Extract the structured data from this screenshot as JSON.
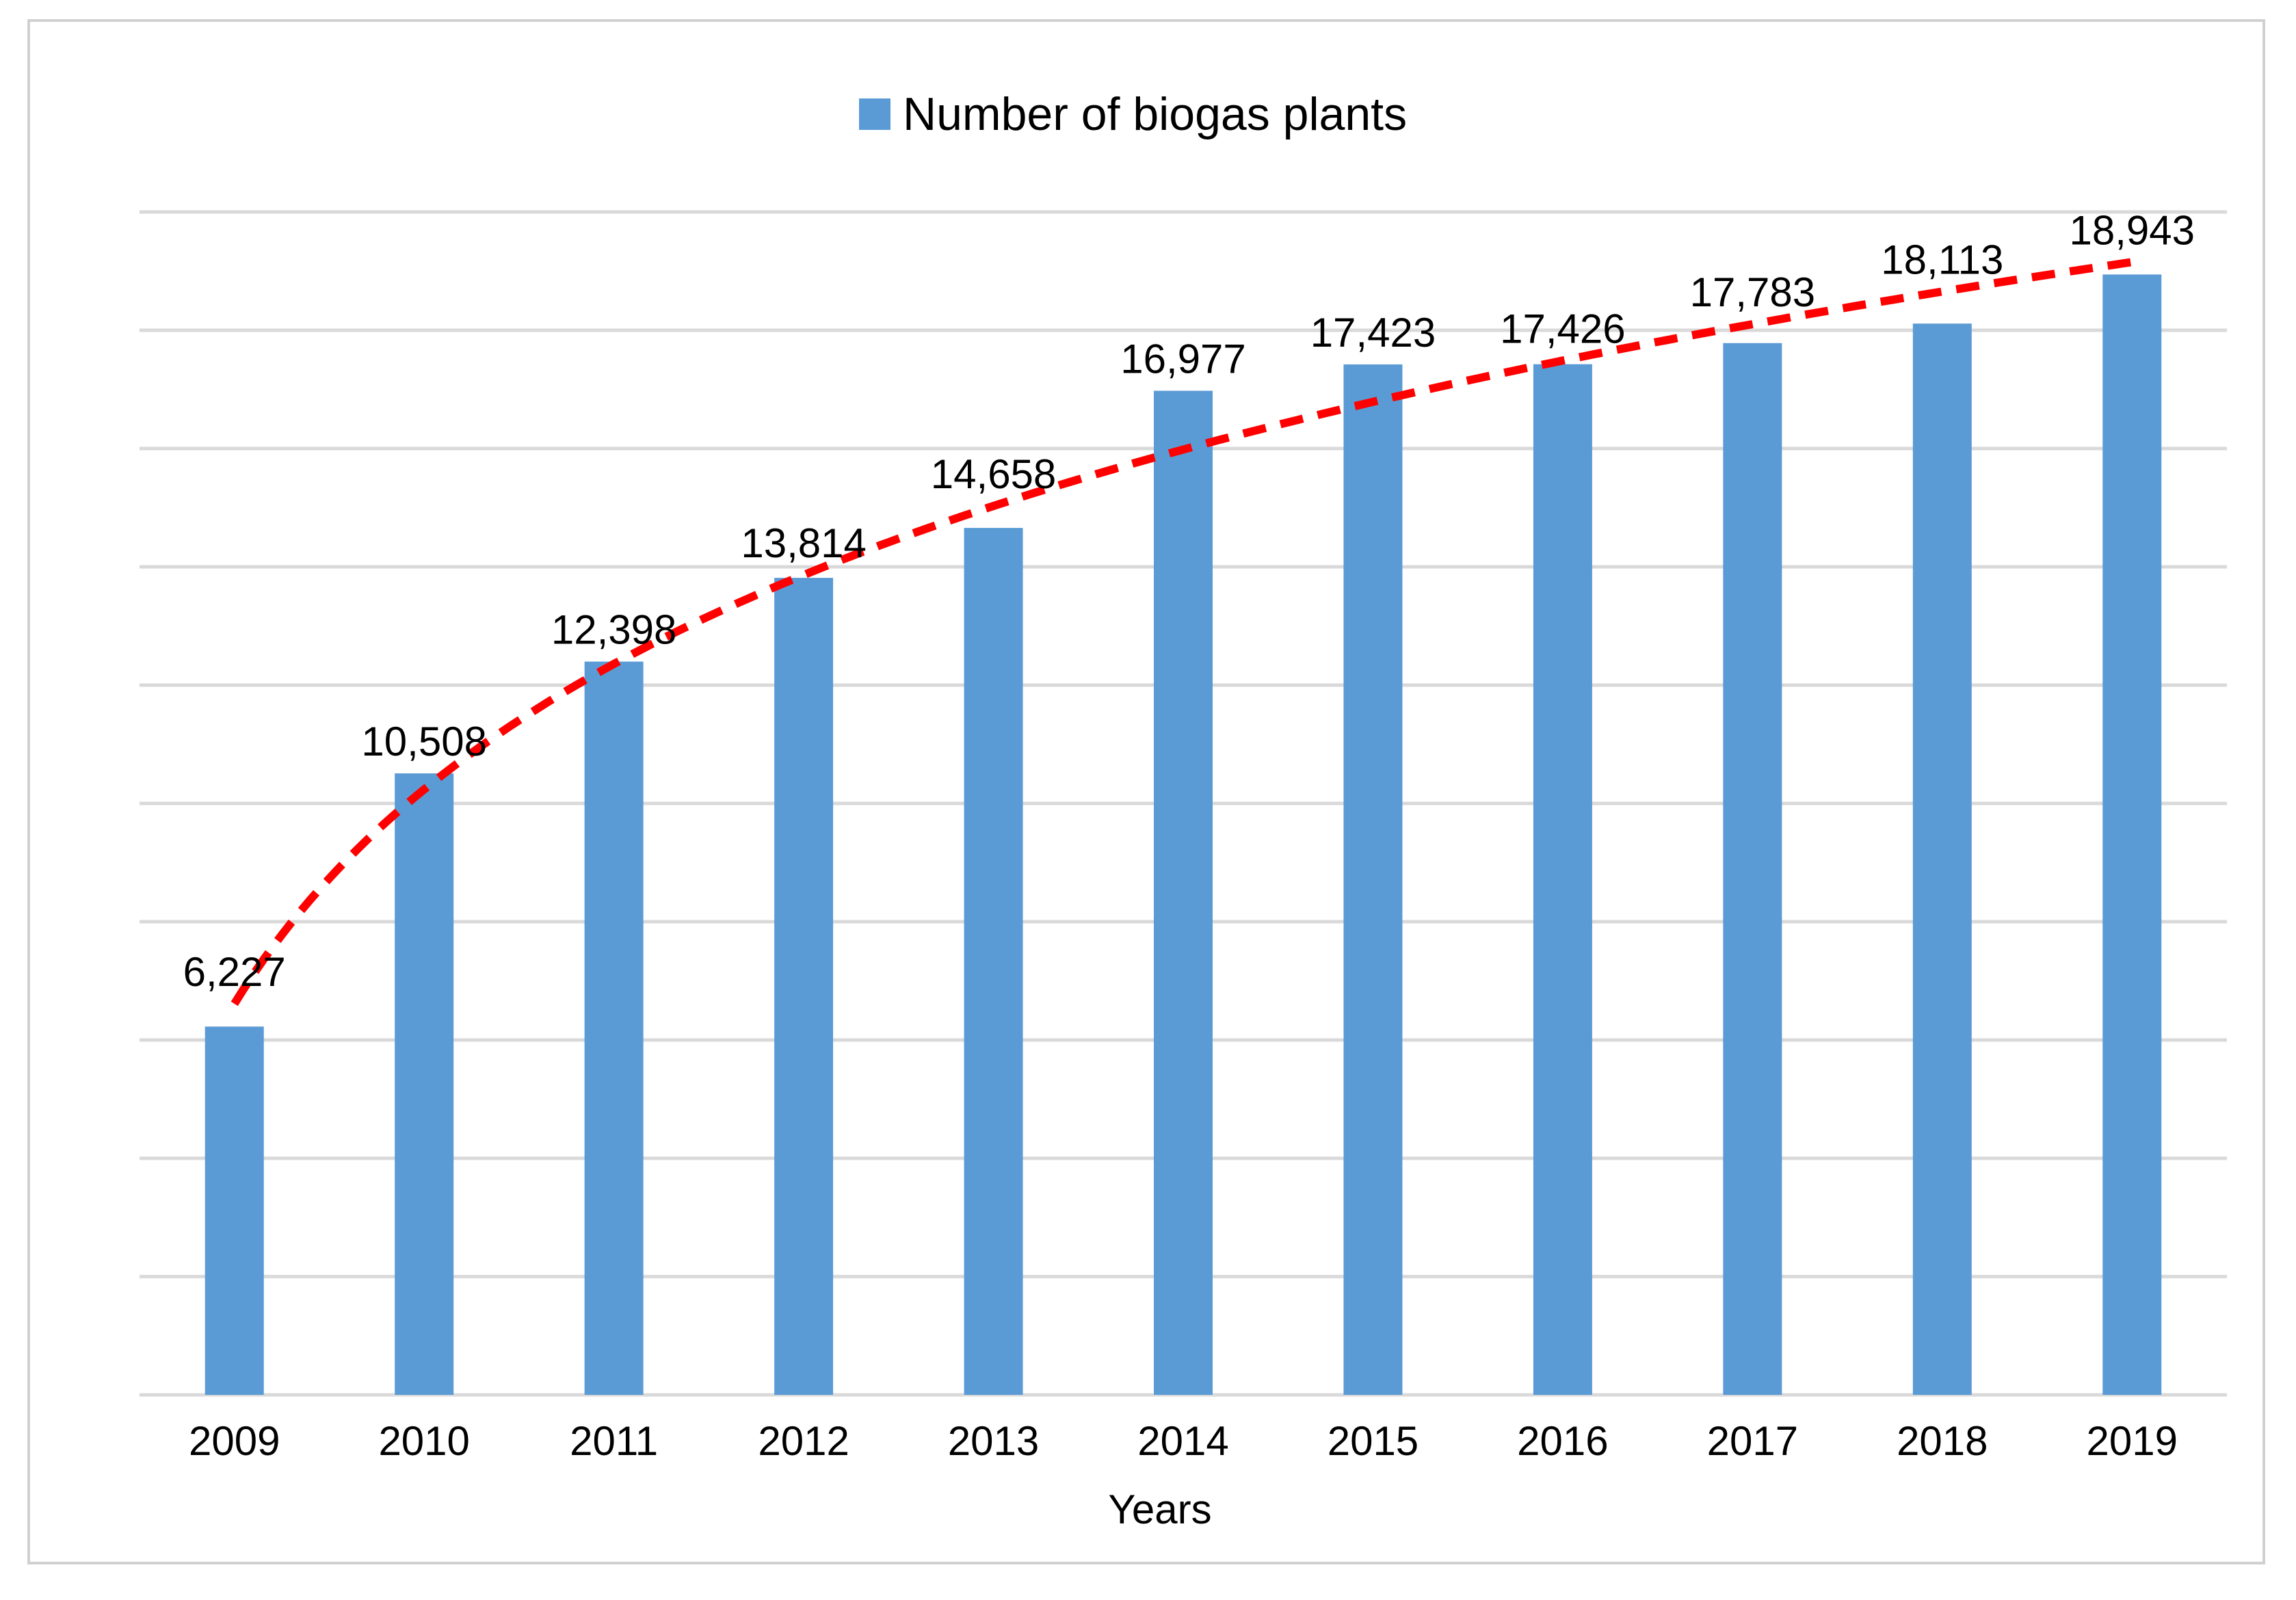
{
  "chart_data": {
    "type": "bar",
    "title": "",
    "xlabel": "Years",
    "ylabel": "",
    "legend": {
      "entries": [
        "Number of biogas plants"
      ],
      "position": "top"
    },
    "categories": [
      "2009",
      "2010",
      "2011",
      "2012",
      "2013",
      "2014",
      "2015",
      "2016",
      "2017",
      "2018",
      "2019"
    ],
    "series": [
      {
        "name": "Number of biogas plants",
        "values": [
          6227,
          10508,
          12398,
          13814,
          14658,
          16977,
          17423,
          17426,
          17783,
          18113,
          18943
        ],
        "data_labels": [
          "6,227",
          "10,508",
          "12,398",
          "13,814",
          "14,658",
          "16,977",
          "17,423",
          "17,426",
          "17,783",
          "18,113",
          "18,943"
        ]
      }
    ],
    "trendline": {
      "type": "logarithmic",
      "style": "dashed",
      "color": "#ff0000"
    },
    "ylim": [
      0,
      20000
    ],
    "y_gridline_step": 2000,
    "y_tick_labels_visible": false,
    "grid": true,
    "colors": {
      "bar": "#5b9bd5",
      "trendline": "#ff0000",
      "grid": "#d9d9d9"
    }
  }
}
